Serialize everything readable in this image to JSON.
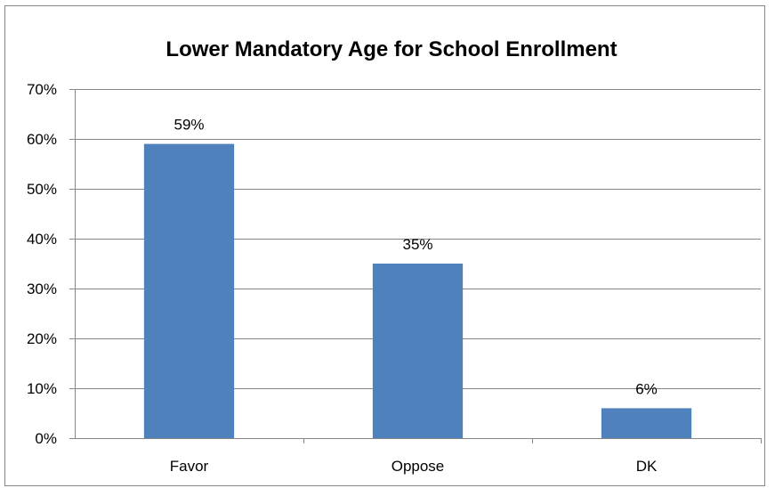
{
  "chart_data": {
    "type": "bar",
    "title": "Lower Mandatory Age for School Enrollment",
    "xlabel": "",
    "ylabel": "",
    "categories": [
      "Favor",
      "Oppose",
      "DK"
    ],
    "values": [
      59,
      35,
      6
    ],
    "data_labels": [
      "59%",
      "35%",
      "6%"
    ],
    "yticks": [
      0,
      10,
      20,
      30,
      40,
      50,
      60,
      70
    ],
    "ytick_labels": [
      "0%",
      "10%",
      "20%",
      "30%",
      "40%",
      "50%",
      "60%",
      "70%"
    ],
    "ylim": [
      0,
      70
    ],
    "grid": true,
    "legend": "none",
    "colors": {
      "bar": "#4F81BD",
      "grid": "#868686",
      "axis": "#868686"
    }
  }
}
